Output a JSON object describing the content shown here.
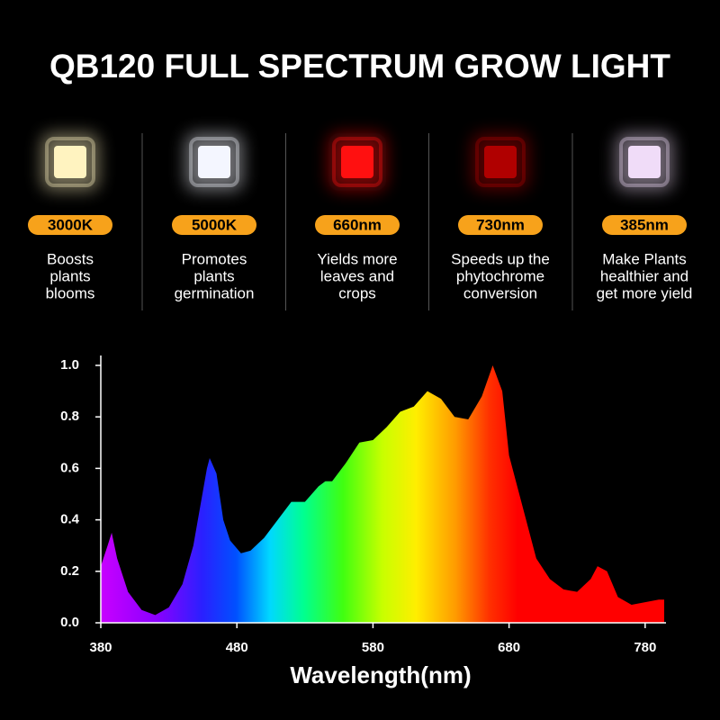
{
  "header": {
    "title": "QB120 FULL SPECTRUM GROW LIGHT"
  },
  "features": [
    {
      "label": "3000K",
      "color": "#fff3c0",
      "description": [
        "Boosts",
        "plants",
        "blooms"
      ]
    },
    {
      "label": "5000K",
      "color": "#f4f6ff",
      "description": [
        "Promotes",
        "plants",
        "germination"
      ]
    },
    {
      "label": "660nm",
      "color": "#ff1010",
      "description": [
        "Yields more",
        "leaves and",
        "crops"
      ]
    },
    {
      "label": "730nm",
      "color": "#b00000",
      "description": [
        "Speeds up the",
        "phytochrome",
        "conversion"
      ]
    },
    {
      "label": "385nm",
      "color": "#f0dcf8",
      "description": [
        "Make Plants",
        "healthier and",
        "get more yield"
      ]
    }
  ],
  "chart_data": {
    "type": "area",
    "x_label": "Wavelength(nm)",
    "x": [
      380,
      385,
      388,
      392,
      400,
      410,
      420,
      430,
      440,
      448,
      453,
      458,
      460,
      465,
      470,
      475,
      483,
      490,
      500,
      510,
      520,
      530,
      540,
      545,
      550,
      560,
      570,
      580,
      590,
      600,
      610,
      620,
      630,
      640,
      650,
      660,
      668,
      675,
      680,
      690,
      700,
      710,
      720,
      730,
      740,
      745,
      752,
      760,
      770,
      780,
      790,
      794
    ],
    "values": [
      0.22,
      0.3,
      0.35,
      0.25,
      0.12,
      0.05,
      0.03,
      0.06,
      0.15,
      0.3,
      0.45,
      0.6,
      0.64,
      0.58,
      0.4,
      0.32,
      0.27,
      0.28,
      0.33,
      0.4,
      0.47,
      0.47,
      0.53,
      0.55,
      0.55,
      0.62,
      0.7,
      0.71,
      0.76,
      0.82,
      0.84,
      0.9,
      0.87,
      0.8,
      0.79,
      0.88,
      1.0,
      0.9,
      0.65,
      0.45,
      0.25,
      0.17,
      0.13,
      0.12,
      0.17,
      0.22,
      0.2,
      0.1,
      0.07,
      0.08,
      0.09,
      0.09
    ],
    "xlim": [
      380,
      794
    ],
    "xticks": [
      380,
      480,
      580,
      680,
      780
    ],
    "ylim": [
      0,
      1.0
    ],
    "yticks": [
      {
        "value": 0,
        "label": "0.0"
      },
      0.2,
      0.4,
      0.6,
      0.8,
      {
        "value": 1.0,
        "label": "1.0"
      }
    ]
  }
}
